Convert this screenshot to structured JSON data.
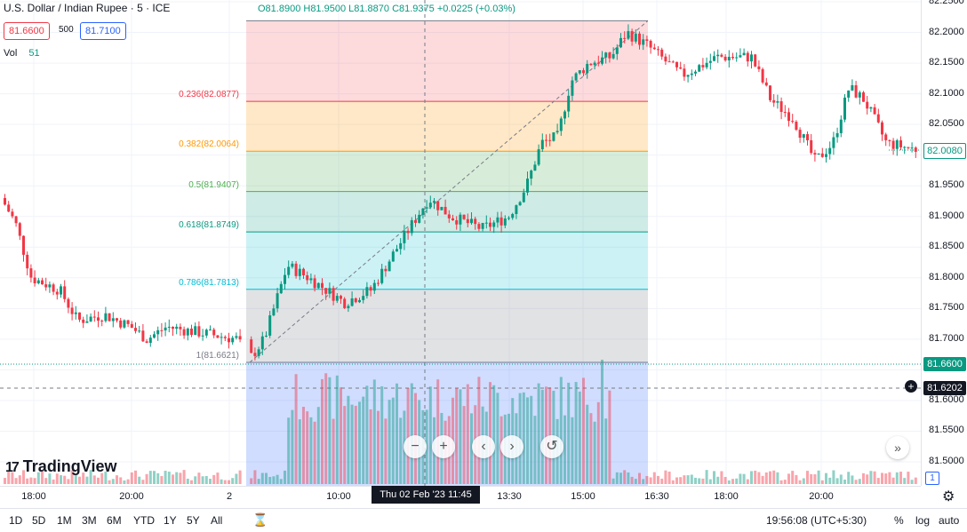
{
  "header": {
    "symbol_title": "U.S. Dollar / Indian Rupee · 5 · ICE",
    "ohlc": "O81.8900 H81.9500 L81.8870 C81.9375 +0.0225 (+0.03%)",
    "sell_price": "81.6600",
    "spread": "500",
    "buy_price": "81.7100",
    "volume_label": "Vol",
    "volume_value": "51"
  },
  "fib_levels": [
    {
      "label": "0.236(82.0877)",
      "price": 82.0877,
      "color": "#f23645"
    },
    {
      "label": "0.382(82.0064)",
      "price": 82.0064,
      "color": "#ff9800"
    },
    {
      "label": "0.5(81.9407)",
      "price": 81.9407,
      "color": "#4caf50"
    },
    {
      "label": "0.618(81.8749)",
      "price": 81.8749,
      "color": "#089981"
    },
    {
      "label": "0.786(81.7813)",
      "price": 81.7813,
      "color": "#00bcd4"
    },
    {
      "label": "1(81.6621)",
      "price": 81.6621,
      "color": "#787b86"
    }
  ],
  "price_axis": {
    "ticks": [
      "82.2500",
      "82.2000",
      "82.1500",
      "82.1000",
      "82.0500",
      "82.0000",
      "81.9500",
      "81.9000",
      "81.8500",
      "81.8000",
      "81.7500",
      "81.7000",
      "81.6500",
      "81.6000",
      "81.5500",
      "81.5000"
    ],
    "last_price_label": "82.0080",
    "bid_label": "81.6600",
    "crosshair_label": "81.6202",
    "volume_badge": "1"
  },
  "time_axis": {
    "ticks": [
      "18:00",
      "20:00",
      "2",
      "10:00",
      "13:30",
      "15:00",
      "16:30",
      "18:00",
      "20:00"
    ],
    "cursor_label": "Thu 02 Feb '23   11:45"
  },
  "nav": {
    "zoom_out": "−",
    "zoom_in": "+",
    "back": "‹",
    "forward": "›",
    "reset": "↺",
    "scroll_right": "»"
  },
  "logo": {
    "text": "TradingView",
    "mark": "17"
  },
  "bottom_bar": {
    "ranges": [
      "1D",
      "5D",
      "1M",
      "3M",
      "6M",
      "YTD",
      "1Y",
      "5Y",
      "All"
    ],
    "clock": "19:56:08 (UTC+5:30)",
    "percent": "%",
    "log": "log",
    "auto": "auto"
  },
  "colors": {
    "up": "#089981",
    "down": "#f23645",
    "bid_label": "#089981",
    "last_label_border": "#089981"
  }
}
